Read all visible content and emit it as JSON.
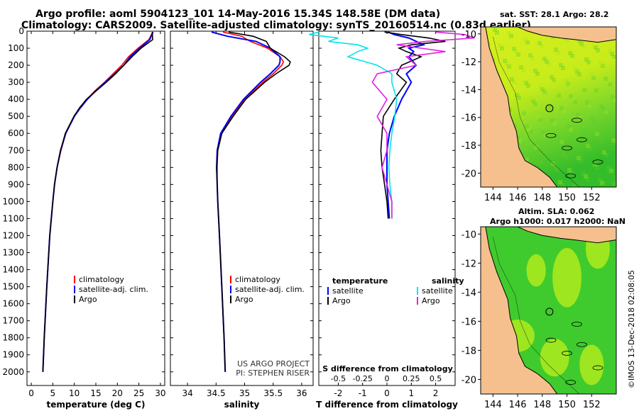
{
  "header": {
    "line1": "Argo profile: aoml 5904123_101 14-May-2016 15.34S 148.58E (DM data)",
    "line2": "Climatology: CARS2009. Satellite-adjusted climatology: synTS_20160514.nc (0.83d earlier)"
  },
  "colors": {
    "climatology": "#ff0000",
    "satellite": "#0000ff",
    "argo": "#000000",
    "salinity_sat": "#00e5ee",
    "salinity_argo": "#e020e0",
    "land": "#f5c08e"
  },
  "chart_data": [
    {
      "type": "line",
      "id": "temperature",
      "xlabel": "temperature (deg C)",
      "ylabel": "depth",
      "xlim": [
        -1,
        31
      ],
      "ylim": [
        2080,
        0
      ],
      "xticks": [
        0,
        5,
        10,
        15,
        20,
        25,
        30
      ],
      "yticks": [
        0,
        100,
        200,
        300,
        400,
        500,
        600,
        700,
        800,
        900,
        1000,
        1100,
        1200,
        1300,
        1400,
        1500,
        1600,
        1700,
        1800,
        1900,
        2000
      ],
      "depth": [
        5,
        50,
        100,
        150,
        200,
        250,
        300,
        350,
        400,
        450,
        500,
        600,
        700,
        800,
        900,
        1000,
        1200,
        1500,
        1800,
        2000
      ],
      "series": [
        {
          "name": "climatology",
          "values": [
            28.2,
            27.3,
            24.8,
            22.6,
            21.0,
            19.0,
            17.0,
            14.8,
            12.9,
            11.2,
            10.0,
            8.0,
            6.9,
            6.0,
            5.4,
            5.0,
            4.3,
            3.6,
            3.0,
            2.7
          ]
        },
        {
          "name": "satellite-adj. clim.",
          "values": [
            28.3,
            27.5,
            25.2,
            23.0,
            21.5,
            19.4,
            17.2,
            15.0,
            13.0,
            11.4,
            10.0,
            8.0,
            6.8,
            6.0,
            5.4,
            5.0,
            4.3,
            3.6,
            3.0,
            2.7
          ]
        },
        {
          "name": "Argo",
          "values": [
            28.1,
            28.2,
            25.5,
            23.4,
            21.5,
            19.6,
            17.4,
            15.1,
            12.8,
            11.2,
            9.9,
            7.9,
            6.8,
            6.0,
            5.4,
            5.0,
            4.3,
            3.6,
            3.0,
            2.7
          ]
        }
      ],
      "legend": [
        "climatology",
        "satellite-adj. clim.",
        "Argo"
      ]
    },
    {
      "type": "line",
      "id": "salinity",
      "xlabel": "salinity",
      "xlim": [
        33.7,
        36.2
      ],
      "ylim": [
        2080,
        0
      ],
      "xticks": [
        34,
        34.5,
        35,
        35.5,
        36
      ],
      "xticklabels": [
        "34",
        "34.5",
        "35",
        "35.5",
        "36"
      ],
      "depth": [
        5,
        30,
        60,
        100,
        150,
        180,
        200,
        250,
        300,
        400,
        500,
        600,
        700,
        800,
        900,
        1000,
        1200,
        1500,
        1800,
        2000
      ],
      "series": [
        {
          "name": "climatology",
          "values": [
            34.62,
            34.95,
            35.1,
            35.4,
            35.62,
            35.68,
            35.65,
            35.5,
            35.32,
            35.0,
            34.78,
            34.6,
            34.53,
            34.52,
            34.52,
            34.53,
            34.56,
            34.6,
            34.64,
            34.66
          ]
        },
        {
          "name": "satellite-adj. clim.",
          "values": [
            34.42,
            34.7,
            35.2,
            35.45,
            35.62,
            35.62,
            35.6,
            35.45,
            35.28,
            34.98,
            34.76,
            34.58,
            34.52,
            34.51,
            34.52,
            34.53,
            34.56,
            34.6,
            34.64,
            34.66
          ]
        },
        {
          "name": "Argo",
          "values": [
            34.72,
            35.15,
            35.38,
            35.45,
            35.7,
            35.8,
            35.78,
            35.55,
            35.35,
            35.02,
            34.8,
            34.6,
            34.53,
            34.51,
            34.52,
            34.53,
            34.56,
            34.6,
            34.64,
            34.66
          ]
        }
      ],
      "legend": [
        "climatology",
        "satellite-adj. clim.",
        "Argo"
      ],
      "annotation": [
        "US ARGO PROJECT",
        "PI: STEPHEN RISER"
      ]
    },
    {
      "type": "line",
      "id": "difference",
      "xlabel": "T difference from climatology",
      "xlabel2": "S difference from climatology",
      "xlim": [
        -2.8,
        2.8
      ],
      "ylim": [
        2080,
        0
      ],
      "xticks": [
        -2,
        -1,
        0,
        1,
        2
      ],
      "xticks2": [
        -0.5,
        -0.25,
        0,
        0.25,
        0.5
      ],
      "xticklabels2": [
        "-0.5",
        "-0.25",
        "0",
        "0.25",
        "0.5"
      ],
      "depth": [
        5,
        20,
        40,
        60,
        80,
        100,
        120,
        150,
        200,
        250,
        300,
        400,
        500,
        600,
        700,
        800,
        900,
        1000,
        1100
      ],
      "series": [
        {
          "name": "temperature satellite",
          "values": [
            0.05,
            0.3,
            0.9,
            1.2,
            1.5,
            0.9,
            1.1,
            0.9,
            1.2,
            0.8,
            1.0,
            0.6,
            0.3,
            0.1,
            0.0,
            0.0,
            0.0,
            0.05,
            0.1
          ]
        },
        {
          "name": "temperature Argo",
          "values": [
            -0.1,
            0.6,
            1.7,
            2.4,
            1.0,
            0.5,
            0.8,
            1.4,
            0.6,
            0.4,
            0.8,
            0.3,
            -0.15,
            -0.2,
            -0.25,
            -0.2,
            -0.1,
            0.0,
            0.05
          ]
        },
        {
          "name": "salinity satellite",
          "values": [
            -0.7,
            -0.8,
            -0.5,
            -0.6,
            -0.3,
            -0.2,
            -0.3,
            -0.4,
            -0.1,
            0.05,
            0.05,
            0.1,
            0.08,
            0.05,
            0.03,
            0.02,
            0.03,
            0.05,
            0.05
          ]
        },
        {
          "name": "salinity Argo",
          "values": [
            0.5,
            0.8,
            0.9,
            0.4,
            0.1,
            0.35,
            0.6,
            0.2,
            0.3,
            -0.1,
            -0.15,
            0.0,
            -0.1,
            0.0,
            0.0,
            -0.05,
            0.0,
            0.05,
            0.05
          ]
        }
      ],
      "legend_temperature": {
        "title": "temperature",
        "items": [
          "satellite",
          "Argo"
        ]
      },
      "legend_salinity": {
        "title": "salinity",
        "items": [
          "satellite",
          "Argo"
        ]
      }
    },
    {
      "type": "heatmap",
      "id": "sst_map",
      "title": "sat. SST: 28.1 Argo: 28.2",
      "xlim": [
        143,
        154
      ],
      "ylim": [
        -21,
        -9.5
      ],
      "xticks": [
        144,
        146,
        148,
        150,
        152
      ],
      "yticks": [
        -10,
        -12,
        -14,
        -16,
        -18,
        -20
      ],
      "profile_location": {
        "lon": 148.58,
        "lat": -15.34
      }
    },
    {
      "type": "heatmap",
      "id": "sla_map",
      "title": "Altim. SLA: 0.062",
      "subtitle": "Argo h1000: 0.017 h2000: NaN",
      "xlim": [
        143,
        154
      ],
      "ylim": [
        -21,
        -9.5
      ],
      "xticks": [
        144,
        146,
        148,
        150,
        152
      ],
      "yticks": [
        -10,
        -12,
        -14,
        -16,
        -18,
        -20
      ],
      "profile_location": {
        "lon": 148.58,
        "lat": -15.34
      }
    }
  ],
  "credit": "©IMOS 13-Dec-2018 02:08:05"
}
